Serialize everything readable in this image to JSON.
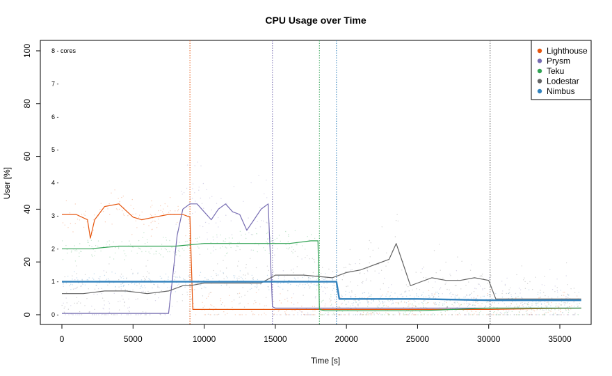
{
  "chart_data": {
    "type": "scatter",
    "title": "CPU Usage over Time",
    "xlabel": "Time [s]",
    "ylabel": "User [%]",
    "xlim": [
      0,
      36500
    ],
    "ylim": [
      0,
      100
    ],
    "x_ticks": [
      0,
      5000,
      10000,
      15000,
      20000,
      25000,
      30000,
      35000
    ],
    "y_ticks": [
      0,
      20,
      40,
      60,
      80,
      100
    ],
    "core_labels": [
      "0 -",
      "1 -",
      "2 -",
      "3 -",
      "4 -",
      "5 -",
      "6 -",
      "7 -",
      "8 - cores"
    ],
    "core_values": [
      0,
      12.5,
      25,
      37.5,
      50,
      62.5,
      75,
      87.5,
      100
    ],
    "legend_position": "top-right",
    "grid": false,
    "vertical_markers": [
      {
        "x": 9000,
        "color": "#e6550d"
      },
      {
        "x": 14800,
        "color": "#756bb1"
      },
      {
        "x": 18100,
        "color": "#31a354"
      },
      {
        "x": 19300,
        "color": "#3182bd"
      },
      {
        "x": 30100,
        "color": "#636363"
      }
    ],
    "series": [
      {
        "name": "Lighthouse",
        "color": "#e6550d",
        "x": [
          0,
          1000,
          1800,
          2000,
          2300,
          3000,
          4000,
          5000,
          5600,
          6500,
          7500,
          8500,
          9000,
          9200,
          10000,
          12000,
          14000,
          16000,
          18000,
          20000,
          25000,
          30000,
          36500
        ],
        "y": [
          38,
          38,
          36,
          29,
          36,
          41,
          42,
          37,
          36,
          37,
          38,
          38,
          37,
          2,
          2,
          2,
          2,
          2,
          2,
          2,
          2,
          2,
          2.5
        ]
      },
      {
        "name": "Prysm",
        "color": "#756bb1",
        "x": [
          0,
          2000,
          4000,
          6000,
          7500,
          7700,
          8100,
          8500,
          9000,
          9500,
          10500,
          11000,
          11500,
          12000,
          12500,
          13000,
          13500,
          14000,
          14500,
          14800,
          15000,
          20000,
          25000,
          30000,
          36500
        ],
        "y": [
          0.5,
          0.5,
          0.5,
          0.5,
          0.5,
          10,
          30,
          40,
          42,
          42,
          36,
          40,
          42,
          39,
          38,
          32,
          36,
          40,
          42,
          3,
          2.5,
          2.5,
          2.5,
          2.5,
          2.5
        ]
      },
      {
        "name": "Teku",
        "color": "#31a354",
        "x": [
          0,
          2000,
          4000,
          6000,
          8000,
          10000,
          12000,
          14000,
          16000,
          17500,
          18000,
          18100,
          18500,
          20000,
          25000,
          30000,
          36500
        ],
        "y": [
          25,
          25,
          26,
          26,
          26,
          27,
          27,
          27,
          27,
          28,
          28,
          2,
          1.5,
          1.5,
          1.5,
          2.5,
          2.5
        ]
      },
      {
        "name": "Lodestar",
        "color": "#636363",
        "x": [
          0,
          1500,
          3000,
          4500,
          6000,
          7500,
          8500,
          9000,
          10000,
          12000,
          14000,
          15000,
          17000,
          19000,
          20000,
          21000,
          22000,
          23000,
          23500,
          24000,
          24500,
          25000,
          26000,
          27000,
          28000,
          29000,
          30000,
          30500,
          32000,
          34000,
          36500
        ],
        "y": [
          8,
          8,
          9,
          9,
          8,
          9,
          11,
          11,
          12,
          12,
          12,
          15,
          15,
          14,
          16,
          17,
          19,
          21,
          27,
          19,
          11,
          12,
          14,
          13,
          13,
          14,
          13,
          6,
          6,
          6,
          6
        ]
      },
      {
        "name": "Nimbus",
        "color": "#3182bd",
        "x": [
          0,
          5000,
          10000,
          15000,
          19000,
          19300,
          19500,
          25000,
          30000,
          36500
        ],
        "y": [
          12.5,
          12.5,
          12.5,
          12.5,
          12.5,
          12.5,
          6,
          6,
          5.5,
          5.5
        ]
      }
    ]
  }
}
